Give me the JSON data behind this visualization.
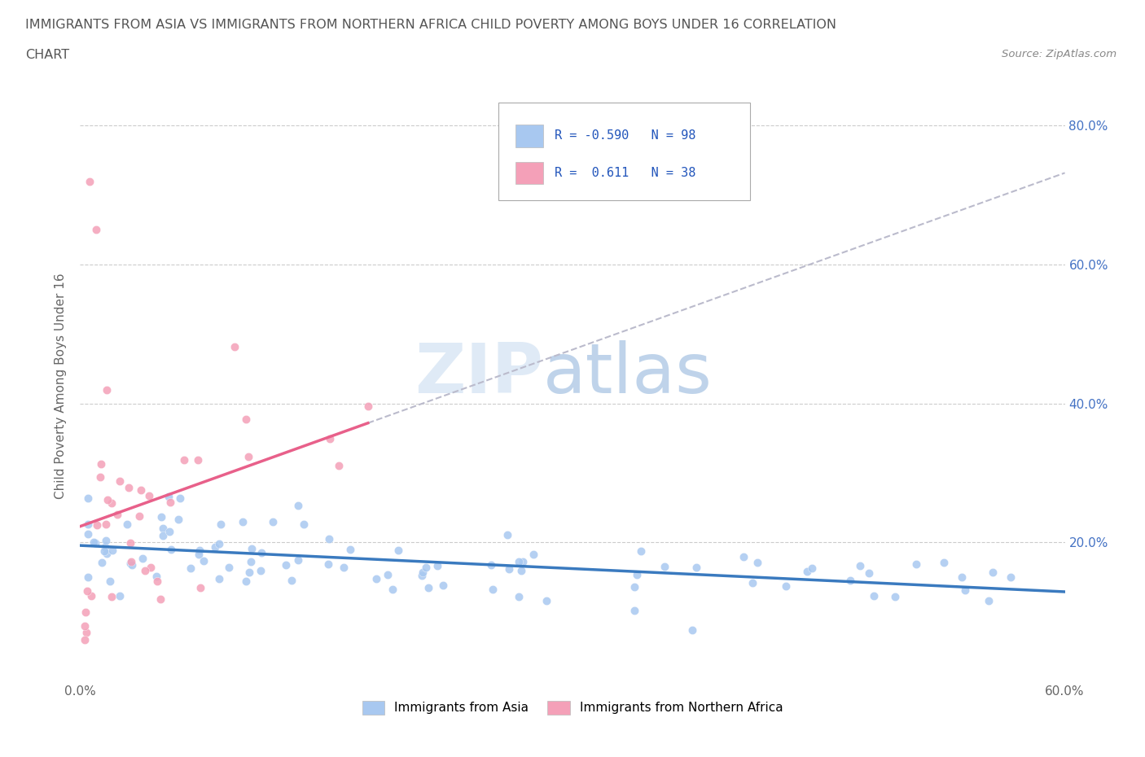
{
  "title_line1": "IMMIGRANTS FROM ASIA VS IMMIGRANTS FROM NORTHERN AFRICA CHILD POVERTY AMONG BOYS UNDER 16 CORRELATION",
  "title_line2": "CHART",
  "source_text": "Source: ZipAtlas.com",
  "ylabel": "Child Poverty Among Boys Under 16",
  "xlim": [
    0.0,
    0.6
  ],
  "ylim": [
    0.0,
    0.85
  ],
  "y_ticks": [
    0.0,
    0.2,
    0.4,
    0.6,
    0.8
  ],
  "y_tick_labels_right": [
    "",
    "20.0%",
    "40.0%",
    "60.0%",
    "80.0%"
  ],
  "r_asia": -0.59,
  "n_asia": 98,
  "r_africa": 0.611,
  "n_africa": 38,
  "color_asia": "#a8c8f0",
  "color_africa": "#f4a0b8",
  "color_asia_line": "#3a7abf",
  "color_africa_line": "#e8608a",
  "color_africa_line_ext": "#c8c8d8",
  "background_color": "#ffffff",
  "grid_color": "#cccccc",
  "legend_label_asia": "Immigrants from Asia",
  "legend_label_africa": "Immigrants from Northern Africa",
  "tick_color": "#4472c4",
  "title_color": "#555555"
}
